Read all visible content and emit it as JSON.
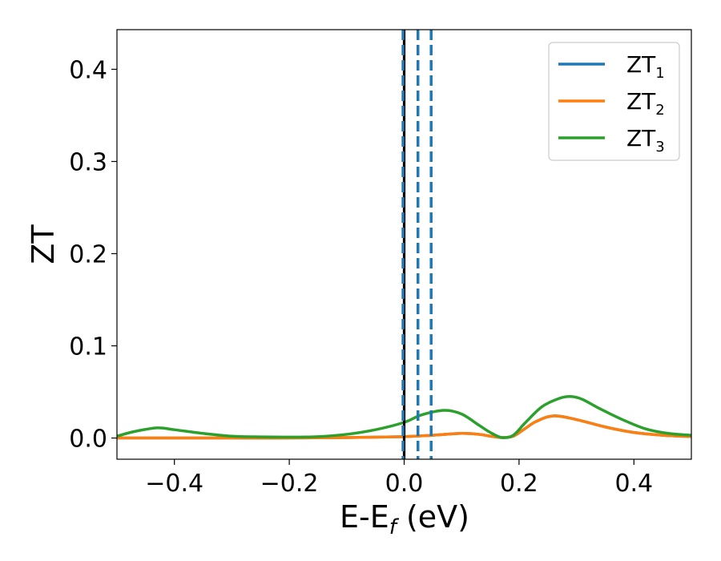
{
  "chart_data": {
    "type": "line",
    "xlabel": "E-E",
    "xlabel_sub": "f",
    "xlabel_unit": " (eV)",
    "ylabel": "ZT",
    "xlim": [
      -0.5,
      0.5
    ],
    "ylim": [
      -0.023,
      0.443
    ],
    "xticks": [
      -0.4,
      -0.2,
      0.0,
      0.2,
      0.4
    ],
    "xtick_labels": [
      "−0.4",
      "−0.2",
      "0.0",
      "0.2",
      "0.4"
    ],
    "yticks": [
      0.0,
      0.1,
      0.2,
      0.3,
      0.4
    ],
    "ytick_labels": [
      "0.0",
      "0.1",
      "0.2",
      "0.3",
      "0.4"
    ],
    "grid": false,
    "legend_position": "top-right",
    "series": [
      {
        "name": "ZT",
        "name_sub": "1",
        "color": "#1f77b4",
        "x": [
          -0.5,
          -0.4,
          -0.3,
          -0.2,
          -0.1,
          0.0,
          0.05,
          0.1,
          0.13,
          0.15,
          0.17,
          0.19,
          0.21,
          0.23,
          0.26,
          0.3,
          0.35,
          0.4,
          0.45,
          0.5
        ],
        "y": [
          0.0,
          0.0,
          0.0,
          0.0,
          0.0005,
          0.0015,
          0.003,
          0.005,
          0.004,
          0.002,
          0.0005,
          0.002,
          0.01,
          0.018,
          0.024,
          0.02,
          0.012,
          0.006,
          0.003,
          0.0015
        ]
      },
      {
        "name": "ZT",
        "name_sub": "2",
        "color": "#ff7f0e",
        "x": [
          -0.5,
          -0.4,
          -0.3,
          -0.2,
          -0.1,
          0.0,
          0.05,
          0.1,
          0.13,
          0.15,
          0.17,
          0.19,
          0.21,
          0.23,
          0.26,
          0.3,
          0.35,
          0.4,
          0.45,
          0.5
        ],
        "y": [
          0.0,
          0.0,
          0.0,
          0.0,
          0.0005,
          0.0015,
          0.003,
          0.005,
          0.004,
          0.002,
          0.0005,
          0.002,
          0.01,
          0.018,
          0.024,
          0.02,
          0.012,
          0.006,
          0.003,
          0.0015
        ]
      },
      {
        "name": "ZT",
        "name_sub": "3",
        "color": "#2ca02c",
        "x": [
          -0.5,
          -0.47,
          -0.43,
          -0.4,
          -0.35,
          -0.3,
          -0.25,
          -0.2,
          -0.15,
          -0.1,
          -0.05,
          0.0,
          0.03,
          0.07,
          0.1,
          0.13,
          0.15,
          0.17,
          0.19,
          0.21,
          0.24,
          0.27,
          0.29,
          0.31,
          0.34,
          0.38,
          0.42,
          0.46,
          0.5
        ],
        "y": [
          0.002,
          0.007,
          0.011,
          0.009,
          0.005,
          0.002,
          0.0012,
          0.001,
          0.0015,
          0.004,
          0.009,
          0.017,
          0.025,
          0.03,
          0.026,
          0.014,
          0.006,
          0.0005,
          0.003,
          0.016,
          0.034,
          0.043,
          0.045,
          0.042,
          0.032,
          0.02,
          0.01,
          0.005,
          0.003
        ]
      }
    ],
    "vlines": [
      {
        "x": 0.0,
        "color": "#000000",
        "style": "solid"
      },
      {
        "x": -0.002,
        "color": "#1f77b4",
        "style": "dashed"
      },
      {
        "x": 0.024,
        "color": "#1f77b4",
        "style": "dashed"
      },
      {
        "x": 0.047,
        "color": "#1f77b4",
        "style": "dashed"
      }
    ]
  }
}
